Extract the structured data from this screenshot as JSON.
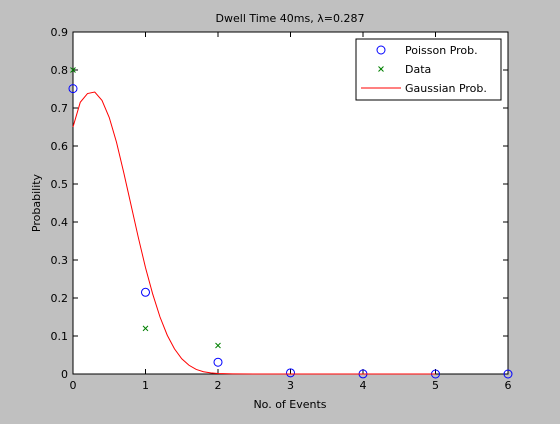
{
  "chart_data": {
    "type": "scatter",
    "title": "Dwell Time 40ms, λ=0.287",
    "xlabel": "No. of Events",
    "ylabel": "Probability",
    "xlim": [
      0,
      6
    ],
    "ylim": [
      0,
      0.9
    ],
    "xticks": [
      "0",
      "1",
      "2",
      "3",
      "4",
      "5",
      "6"
    ],
    "yticks": [
      "0",
      "0.1",
      "0.2",
      "0.3",
      "0.4",
      "0.5",
      "0.6",
      "0.7",
      "0.8",
      "0.9"
    ],
    "grid": false,
    "legend_position": "top-right",
    "series": [
      {
        "name": "Poisson Prob.",
        "marker": "circle",
        "color": "#0000ff",
        "x": [
          0,
          1,
          2,
          3,
          4,
          5,
          6
        ],
        "y": [
          0.751,
          0.215,
          0.031,
          0.003,
          0.0002,
          0.0,
          0.0
        ]
      },
      {
        "name": "Data",
        "marker": "x",
        "color": "#008000",
        "x": [
          0,
          1,
          2
        ],
        "y": [
          0.8,
          0.12,
          0.075
        ]
      },
      {
        "name": "Gaussian Prob.",
        "line": true,
        "color": "#ff0000",
        "x": [
          0,
          0.1,
          0.2,
          0.3,
          0.4,
          0.5,
          0.6,
          0.7,
          0.8,
          0.9,
          1.0,
          1.1,
          1.2,
          1.3,
          1.4,
          1.5,
          1.6,
          1.7,
          1.8,
          1.9,
          2.0,
          2.2,
          2.5,
          3.0,
          4.0,
          5.0
        ],
        "y": [
          0.65,
          0.715,
          0.738,
          0.742,
          0.72,
          0.675,
          0.61,
          0.53,
          0.445,
          0.36,
          0.28,
          0.21,
          0.15,
          0.102,
          0.066,
          0.04,
          0.023,
          0.012,
          0.006,
          0.003,
          0.0013,
          0.0003,
          0.0,
          0.0,
          0.0,
          0.0
        ]
      }
    ]
  }
}
